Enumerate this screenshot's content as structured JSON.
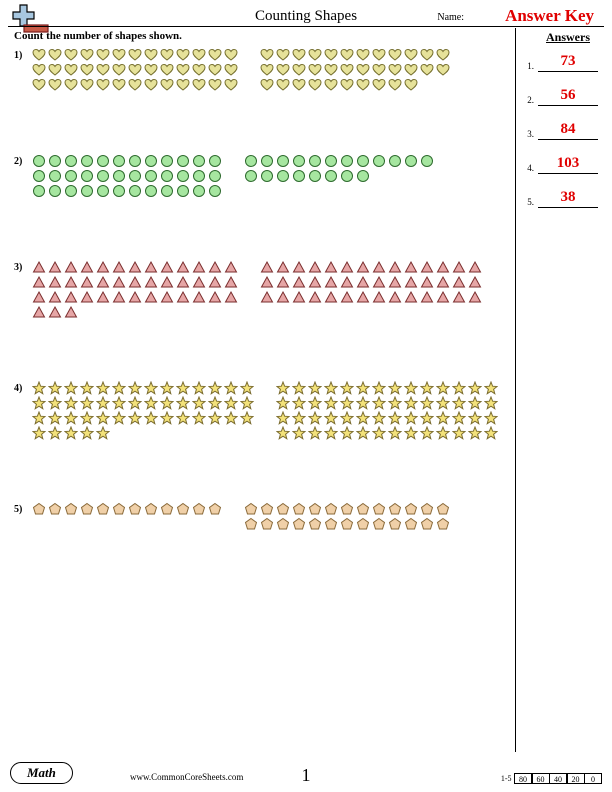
{
  "header": {
    "title": "Counting Shapes",
    "name_label": "Name:",
    "answer_key": "Answer Key",
    "instruction": "Count the number of shapes shown.",
    "answers_title": "Answers"
  },
  "logo": {
    "plus_stroke": "#000000",
    "plus_fill": "#a7c7e0",
    "minus_stroke": "#7a1a1a",
    "minus_fill": "#c85a47"
  },
  "shape_colors": {
    "heart": {
      "fill": "#e6e29a",
      "stroke": "#756f2e"
    },
    "circle": {
      "fill": "#a6e6a0",
      "stroke": "#2e6b2e"
    },
    "triangle": {
      "fill": "#e6a6a6",
      "stroke": "#7a2e2e"
    },
    "star": {
      "fill": "#f3e27a",
      "stroke": "#7a6b2e"
    },
    "pentagon": {
      "fill": "#f0d0a8",
      "stroke": "#8a6a3a"
    }
  },
  "problems": [
    {
      "num": "1)",
      "shape": "heart",
      "groups": [
        {
          "cols": 13,
          "full_rows": 3,
          "last_row": 13
        },
        {
          "cols": 12,
          "full_rows": 2,
          "last_row": 10
        }
      ]
    },
    {
      "num": "2)",
      "shape": "circle",
      "groups": [
        {
          "cols": 12,
          "full_rows": 3,
          "last_row": 12
        },
        {
          "cols": 12,
          "full_rows": 1,
          "last_row": 8
        }
      ]
    },
    {
      "num": "3)",
      "shape": "triangle",
      "groups": [
        {
          "cols": 13,
          "full_rows": 3,
          "last_row": 3
        },
        {
          "cols": 14,
          "full_rows": 3,
          "last_row": 14
        }
      ]
    },
    {
      "num": "4)",
      "shape": "star",
      "groups": [
        {
          "cols": 14,
          "full_rows": 3,
          "last_row": 5
        },
        {
          "cols": 14,
          "full_rows": 4,
          "last_row": 14
        }
      ]
    },
    {
      "num": "5)",
      "shape": "pentagon",
      "groups": [
        {
          "cols": 12,
          "full_rows": 1,
          "last_row": 12
        },
        {
          "cols": 13,
          "full_rows": 2,
          "last_row": 13
        }
      ]
    }
  ],
  "answers": [
    {
      "num": "1.",
      "val": "73"
    },
    {
      "num": "2.",
      "val": "56"
    },
    {
      "num": "3.",
      "val": "84"
    },
    {
      "num": "4.",
      "val": "103"
    },
    {
      "num": "5.",
      "val": "38"
    }
  ],
  "footer": {
    "math": "Math",
    "url": "www.CommonCoreSheets.com",
    "page": "1",
    "grade_label": "1-5",
    "grade_boxes": [
      "80",
      "60",
      "40",
      "20",
      "0"
    ]
  }
}
